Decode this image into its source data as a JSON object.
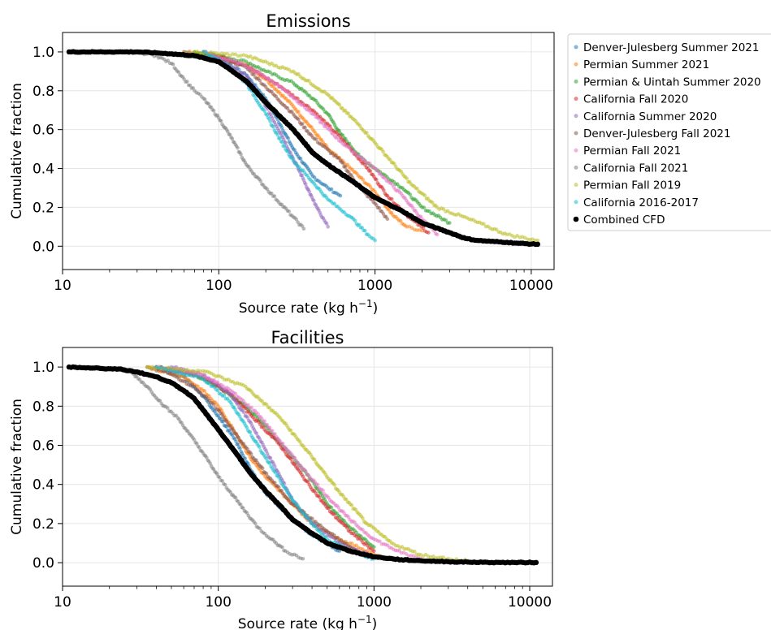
{
  "legend": {
    "placement": "outside right of top panel",
    "entries": [
      {
        "name": "Denver-Julesberg Summer 2021",
        "color": "#1f77b4"
      },
      {
        "name": "Permian Summer 2021",
        "color": "#ff7f0e"
      },
      {
        "name": "Permian & Uintah Summer 2020",
        "color": "#2ca02c"
      },
      {
        "name": "California Fall 2020",
        "color": "#d62728"
      },
      {
        "name": "California Summer 2020",
        "color": "#9467bd"
      },
      {
        "name": "Denver-Julesberg Fall 2021",
        "color": "#8c564b"
      },
      {
        "name": "Permian Fall 2021",
        "color": "#e377c2"
      },
      {
        "name": "California Fall 2021",
        "color": "#7f7f7f"
      },
      {
        "name": "Permian Fall 2019",
        "color": "#bcbd22"
      },
      {
        "name": "California 2016-2017",
        "color": "#17becf"
      },
      {
        "name": "Combined CFD",
        "color": "#000000"
      }
    ]
  },
  "chart_data": [
    {
      "type": "scatter",
      "title": "Emissions",
      "xlabel": "Source rate (kg h",
      "xlabel_sup": "−1",
      "xlabel_end": ")",
      "ylabel": "Cumulative fraction",
      "xscale": "log",
      "xlim": [
        10,
        14000
      ],
      "ylim": [
        -0.12,
        1.1
      ],
      "xticks": [
        10,
        100,
        1000,
        10000
      ],
      "xtick_labels": [
        "10",
        "100",
        "1000",
        "10000"
      ],
      "yticks": [
        0.0,
        0.2,
        0.4,
        0.6,
        0.8,
        1.0
      ],
      "ytick_labels": [
        "0.0",
        "0.2",
        "0.4",
        "0.6",
        "0.8",
        "1.0"
      ],
      "grid": true,
      "series": [
        {
          "name": "Denver-Julesberg Summer 2021",
          "x": [
            60,
            100,
            150,
            200,
            250,
            300,
            400,
            500,
            600
          ],
          "y": [
            1.0,
            0.97,
            0.88,
            0.76,
            0.62,
            0.5,
            0.36,
            0.3,
            0.26
          ]
        },
        {
          "name": "Permian Summer 2021",
          "x": [
            60,
            100,
            150,
            200,
            300,
            400,
            500,
            700,
            1000,
            1300,
            1600,
            2000
          ],
          "y": [
            1.0,
            0.98,
            0.93,
            0.86,
            0.72,
            0.6,
            0.5,
            0.4,
            0.28,
            0.16,
            0.1,
            0.08
          ]
        },
        {
          "name": "Permian & Uintah Summer 2020",
          "x": [
            70,
            100,
            150,
            200,
            300,
            400,
            500,
            600,
            800,
            1000,
            1500,
            2000,
            3000
          ],
          "y": [
            1.0,
            0.98,
            0.95,
            0.9,
            0.84,
            0.76,
            0.68,
            0.58,
            0.46,
            0.4,
            0.3,
            0.2,
            0.12
          ]
        },
        {
          "name": "California Fall 2020",
          "x": [
            80,
            150,
            250,
            400,
            600,
            900,
            1200,
            1700,
            2200
          ],
          "y": [
            1.0,
            0.93,
            0.82,
            0.7,
            0.56,
            0.4,
            0.26,
            0.14,
            0.07
          ]
        },
        {
          "name": "California Summer 2020",
          "x": [
            80,
            150,
            200,
            250,
            300,
            350,
            400,
            450,
            500
          ],
          "y": [
            1.0,
            0.88,
            0.72,
            0.58,
            0.45,
            0.34,
            0.24,
            0.16,
            0.1
          ]
        },
        {
          "name": "Denver-Julesberg Fall 2021",
          "x": [
            80,
            150,
            200,
            300,
            400,
            600,
            800,
            1000,
            1200
          ],
          "y": [
            1.0,
            0.92,
            0.82,
            0.68,
            0.56,
            0.44,
            0.3,
            0.22,
            0.14
          ]
        },
        {
          "name": "Permian Fall 2021",
          "x": [
            80,
            150,
            250,
            400,
            600,
            800,
            1000,
            1500,
            2000,
            2500
          ],
          "y": [
            1.0,
            0.93,
            0.82,
            0.68,
            0.54,
            0.46,
            0.4,
            0.26,
            0.14,
            0.06
          ]
        },
        {
          "name": "California Fall 2021",
          "x": [
            30,
            40,
            50,
            60,
            70,
            80,
            100,
            120,
            150,
            200,
            300,
            350
          ],
          "y": [
            1.0,
            0.98,
            0.94,
            0.86,
            0.8,
            0.76,
            0.66,
            0.56,
            0.42,
            0.3,
            0.15,
            0.09
          ]
        },
        {
          "name": "Permian Fall 2019",
          "x": [
            70,
            150,
            300,
            500,
            800,
            1200,
            1700,
            2500,
            4000,
            7000,
            11000
          ],
          "y": [
            1.0,
            0.98,
            0.9,
            0.78,
            0.62,
            0.46,
            0.32,
            0.2,
            0.14,
            0.06,
            0.03
          ]
        },
        {
          "name": "California 2016-2017",
          "x": [
            80,
            100,
            150,
            200,
            250,
            300,
            400,
            500,
            700,
            900,
            1000
          ],
          "y": [
            1.0,
            0.96,
            0.84,
            0.68,
            0.54,
            0.44,
            0.33,
            0.24,
            0.15,
            0.06,
            0.03
          ]
        },
        {
          "name": "Combined CFD",
          "x": [
            11,
            16,
            17,
            20,
            22,
            25,
            30,
            40,
            50,
            70,
            100,
            150,
            200,
            300,
            400,
            500,
            700,
            1000,
            1500,
            2000,
            3000,
            3800,
            4500,
            5500,
            7000,
            8300,
            11000
          ],
          "y": [
            1.0,
            1.0,
            1.0,
            1.0,
            1.0,
            1.0,
            1.0,
            0.995,
            0.99,
            0.98,
            0.95,
            0.85,
            0.74,
            0.6,
            0.48,
            0.42,
            0.34,
            0.25,
            0.18,
            0.12,
            0.07,
            0.04,
            0.03,
            0.025,
            0.02,
            0.015,
            0.01
          ]
        }
      ]
    },
    {
      "type": "scatter",
      "title": "Facilities",
      "xlabel": "Source rate (kg h",
      "xlabel_sup": "−1",
      "xlabel_end": ")",
      "ylabel": "Cumulative fraction",
      "xscale": "log",
      "xlim": [
        10,
        14000
      ],
      "ylim": [
        -0.12,
        1.1
      ],
      "xticks": [
        10,
        100,
        1000,
        10000
      ],
      "xtick_labels": [
        "10",
        "100",
        "1000",
        "10000"
      ],
      "yticks": [
        0.0,
        0.2,
        0.4,
        0.6,
        0.8,
        1.0
      ],
      "ytick_labels": [
        "0.0",
        "0.2",
        "0.4",
        "0.6",
        "0.8",
        "1.0"
      ],
      "grid": true,
      "series": [
        {
          "name": "Denver-Julesberg Summer 2021",
          "x": [
            35,
            60,
            80,
            100,
            130,
            160,
            200,
            300,
            400,
            600
          ],
          "y": [
            1.0,
            0.95,
            0.85,
            0.75,
            0.62,
            0.48,
            0.36,
            0.22,
            0.14,
            0.06
          ]
        },
        {
          "name": "Permian Summer 2021",
          "x": [
            35,
            60,
            80,
            100,
            130,
            160,
            200,
            300,
            400,
            600,
            900,
            1100
          ],
          "y": [
            1.0,
            0.95,
            0.88,
            0.8,
            0.66,
            0.54,
            0.44,
            0.3,
            0.2,
            0.12,
            0.06,
            0.03
          ]
        },
        {
          "name": "Permian & Uintah Summer 2020",
          "x": [
            40,
            70,
            100,
            150,
            200,
            300,
            400,
            500,
            700,
            1000
          ],
          "y": [
            1.0,
            0.96,
            0.9,
            0.8,
            0.7,
            0.54,
            0.42,
            0.3,
            0.18,
            0.08
          ]
        },
        {
          "name": "California Fall 2020",
          "x": [
            40,
            80,
            120,
            160,
            250,
            350,
            500,
            700,
            1000
          ],
          "y": [
            1.0,
            0.95,
            0.86,
            0.76,
            0.6,
            0.44,
            0.28,
            0.16,
            0.06
          ]
        },
        {
          "name": "California Summer 2020",
          "x": [
            50,
            80,
            120,
            160,
            200,
            250,
            300,
            400,
            600,
            1000
          ],
          "y": [
            1.0,
            0.96,
            0.86,
            0.72,
            0.58,
            0.44,
            0.32,
            0.2,
            0.1,
            0.03
          ]
        },
        {
          "name": "Denver-Julesberg Fall 2021",
          "x": [
            40,
            70,
            100,
            140,
            200,
            300,
            500,
            800
          ],
          "y": [
            1.0,
            0.9,
            0.78,
            0.62,
            0.46,
            0.3,
            0.16,
            0.05
          ]
        },
        {
          "name": "Permian Fall 2021",
          "x": [
            40,
            80,
            120,
            180,
            250,
            350,
            500,
            700,
            1000,
            1500,
            2000
          ],
          "y": [
            1.0,
            0.96,
            0.88,
            0.76,
            0.62,
            0.48,
            0.34,
            0.22,
            0.12,
            0.05,
            0.02
          ]
        },
        {
          "name": "California Fall 2021",
          "x": [
            28,
            35,
            45,
            55,
            65,
            80,
            100,
            120,
            150,
            180,
            220,
            270,
            350
          ],
          "y": [
            0.97,
            0.9,
            0.8,
            0.74,
            0.66,
            0.56,
            0.44,
            0.36,
            0.26,
            0.18,
            0.12,
            0.06,
            0.02
          ]
        },
        {
          "name": "Permian Fall 2019",
          "x": [
            35,
            80,
            150,
            250,
            400,
            600,
            900,
            1300,
            2000,
            3000,
            4000
          ],
          "y": [
            1.0,
            0.98,
            0.9,
            0.74,
            0.54,
            0.36,
            0.2,
            0.1,
            0.04,
            0.02,
            0.01
          ]
        },
        {
          "name": "California 2016-2017",
          "x": [
            40,
            80,
            120,
            150,
            200,
            250,
            300,
            400,
            500,
            700,
            1000
          ],
          "y": [
            1.0,
            0.94,
            0.82,
            0.7,
            0.54,
            0.42,
            0.32,
            0.2,
            0.12,
            0.06,
            0.02
          ]
        },
        {
          "name": "Combined CFD",
          "x": [
            11,
            16,
            17,
            19,
            21,
            23,
            25,
            30,
            40,
            50,
            60,
            70,
            80,
            100,
            130,
            160,
            200,
            250,
            300,
            400,
            500,
            700,
            1000,
            1500,
            2000,
            3000,
            4000,
            5000,
            6500,
            8000,
            11000
          ],
          "y": [
            1.0,
            0.995,
            0.995,
            0.99,
            0.99,
            0.99,
            0.985,
            0.975,
            0.95,
            0.92,
            0.88,
            0.84,
            0.78,
            0.68,
            0.56,
            0.46,
            0.37,
            0.29,
            0.22,
            0.15,
            0.1,
            0.06,
            0.03,
            0.015,
            0.01,
            0.005,
            0.003,
            0.002,
            0.001,
            0.001,
            0.001
          ]
        }
      ]
    }
  ]
}
